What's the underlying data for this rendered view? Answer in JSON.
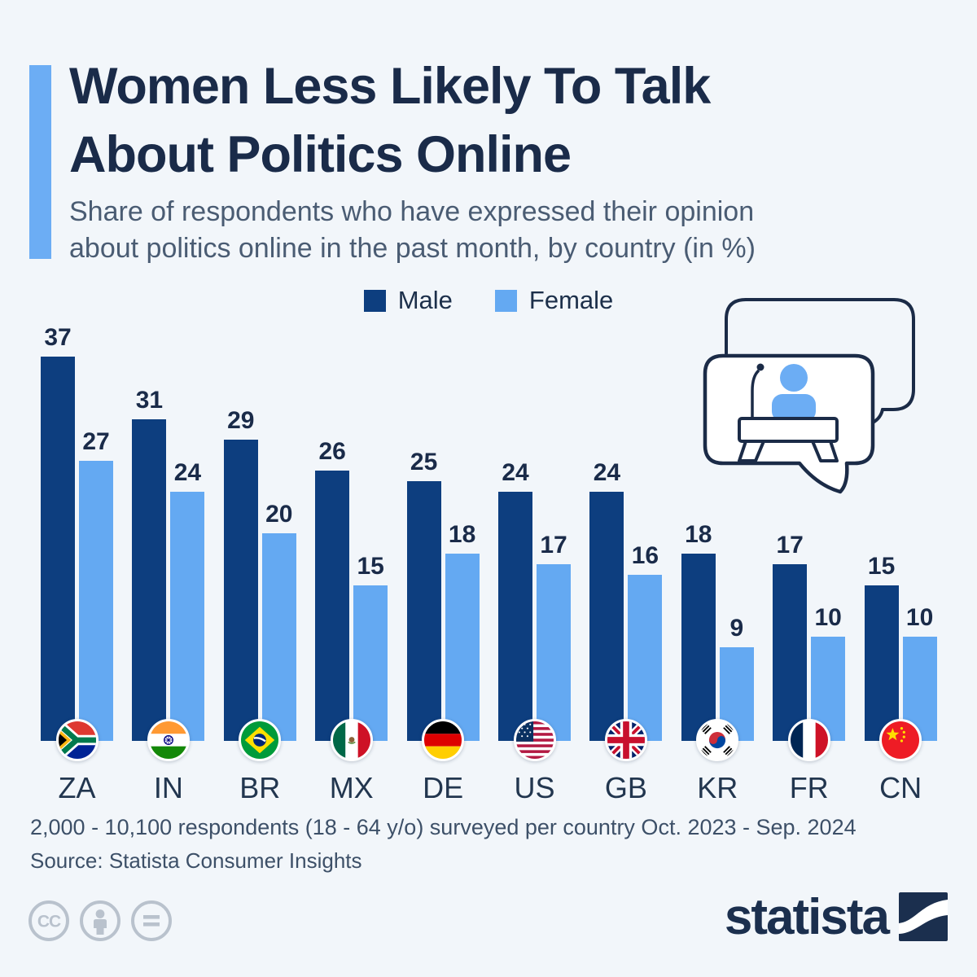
{
  "page": {
    "background": "#f2f6fa",
    "accent_color": "#6cadf4"
  },
  "header": {
    "title_line1": "Women Less Likely To Talk",
    "title_line2": "About Politics Online",
    "subtitle_line1": "Share of respondents who have expressed their opinion",
    "subtitle_line2": "about politics online in the past month, by country (in %)"
  },
  "legend": [
    {
      "label": "Male",
      "color": "#0d3e7f"
    },
    {
      "label": "Female",
      "color": "#64a9f2"
    }
  ],
  "chart_data": {
    "type": "bar",
    "title": "Women Less Likely To Talk About Politics Online",
    "xlabel": "",
    "ylabel": "Share of respondents (%)",
    "ylim": [
      0,
      40
    ],
    "grid": false,
    "legend_position": "top",
    "unit": "%",
    "categories": [
      "ZA",
      "IN",
      "BR",
      "MX",
      "DE",
      "US",
      "GB",
      "KR",
      "FR",
      "CN"
    ],
    "flags": [
      "za",
      "in",
      "br",
      "mx",
      "de",
      "us",
      "gb",
      "kr",
      "fr",
      "cn"
    ],
    "series": [
      {
        "name": "Male",
        "color": "#0d3e7f",
        "values": [
          37,
          31,
          29,
          26,
          25,
          24,
          24,
          18,
          17,
          15
        ]
      },
      {
        "name": "Female",
        "color": "#64a9f2",
        "values": [
          27,
          24,
          20,
          15,
          18,
          17,
          16,
          9,
          10,
          10
        ]
      }
    ]
  },
  "illustration": {
    "name": "speaker-at-podium-speech-bubbles"
  },
  "footer": {
    "note": "2,000 - 10,100 respondents (18 - 64 y/o) surveyed per country Oct. 2023 - Sep. 2024",
    "source": "Source: Statista Consumer Insights",
    "license_icons": [
      "cc-icon",
      "by-icon",
      "nd-icon"
    ],
    "brand": "statista"
  }
}
